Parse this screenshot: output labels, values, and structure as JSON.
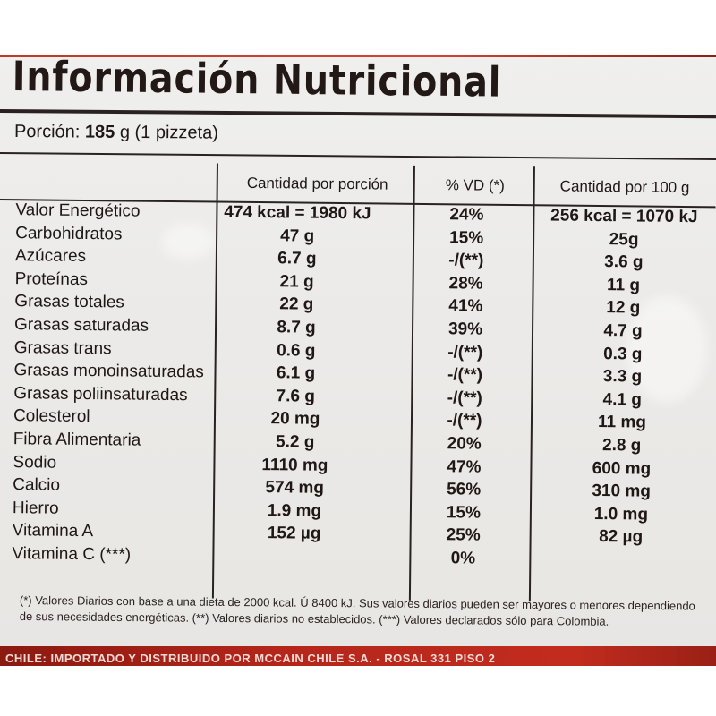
{
  "title": "Información Nutricional",
  "portion": {
    "label": "Porción:",
    "amount": "185",
    "rest": "g (1 pizzeta)"
  },
  "headers": {
    "per_portion": "Cantidad por porción",
    "vd": "% VD (*)",
    "per_100g": "Cantidad por 100 g"
  },
  "rows": [
    {
      "name": "Valor Energético",
      "portion": "474 kcal = 1980 kJ",
      "vd": "24%",
      "per100": "256 kcal = 1070 kJ"
    },
    {
      "name": "Carbohidratos",
      "portion": "47 g",
      "vd": "15%",
      "per100": "25g"
    },
    {
      "name": "Azúcares",
      "portion": "6.7 g",
      "vd": "-/(**)",
      "per100": "3.6 g"
    },
    {
      "name": "Proteínas",
      "portion": "21 g",
      "vd": "28%",
      "per100": "11 g"
    },
    {
      "name": "Grasas totales",
      "portion": "22 g",
      "vd": "41%",
      "per100": "12 g"
    },
    {
      "name": "Grasas saturadas",
      "portion": "8.7 g",
      "vd": "39%",
      "per100": "4.7 g"
    },
    {
      "name": "Grasas trans",
      "portion": "0.6 g",
      "vd": "-/(**)",
      "per100": "0.3 g"
    },
    {
      "name": "Grasas monoinsaturadas",
      "portion": "6.1 g",
      "vd": "-/(**)",
      "per100": "3.3 g"
    },
    {
      "name": "Grasas poliinsaturadas",
      "portion": "7.6 g",
      "vd": "-/(**)",
      "per100": "4.1 g"
    },
    {
      "name": "Colesterol",
      "portion": "20 mg",
      "vd": "-/(**)",
      "per100": "11 mg"
    },
    {
      "name": "Fibra Alimentaria",
      "portion": "5.2 g",
      "vd": "20%",
      "per100": "2.8 g"
    },
    {
      "name": "Sodio",
      "portion": "1110 mg",
      "vd": "47%",
      "per100": "600 mg"
    },
    {
      "name": "Calcio",
      "portion": "574 mg",
      "vd": "56%",
      "per100": "310 mg"
    },
    {
      "name": "Hierro",
      "portion": "1.9 mg",
      "vd": "15%",
      "per100": "1.0 mg"
    },
    {
      "name": "Vitamina A",
      "portion": "152 µg",
      "vd": "25%",
      "per100": "82 µg"
    },
    {
      "name": "Vitamina C (***)",
      "portion": "",
      "vd": "0%",
      "per100": ""
    }
  ],
  "footnote": "(*) Valores Diarios con base a una dieta de 2000 kcal. Ú 8400 kJ. Sus valores diarios pueden ser mayores o menores dependiendo de sus necesidades energéticas. (**) Valores diarios no establecidos. (***) Valores declarados sólo para Colombia.",
  "bottom_strip": "CHILE: IMPORTADO Y DISTRIBUIDO POR MCCAIN CHILE S.A. - ROSAL 331 PISO 2"
}
